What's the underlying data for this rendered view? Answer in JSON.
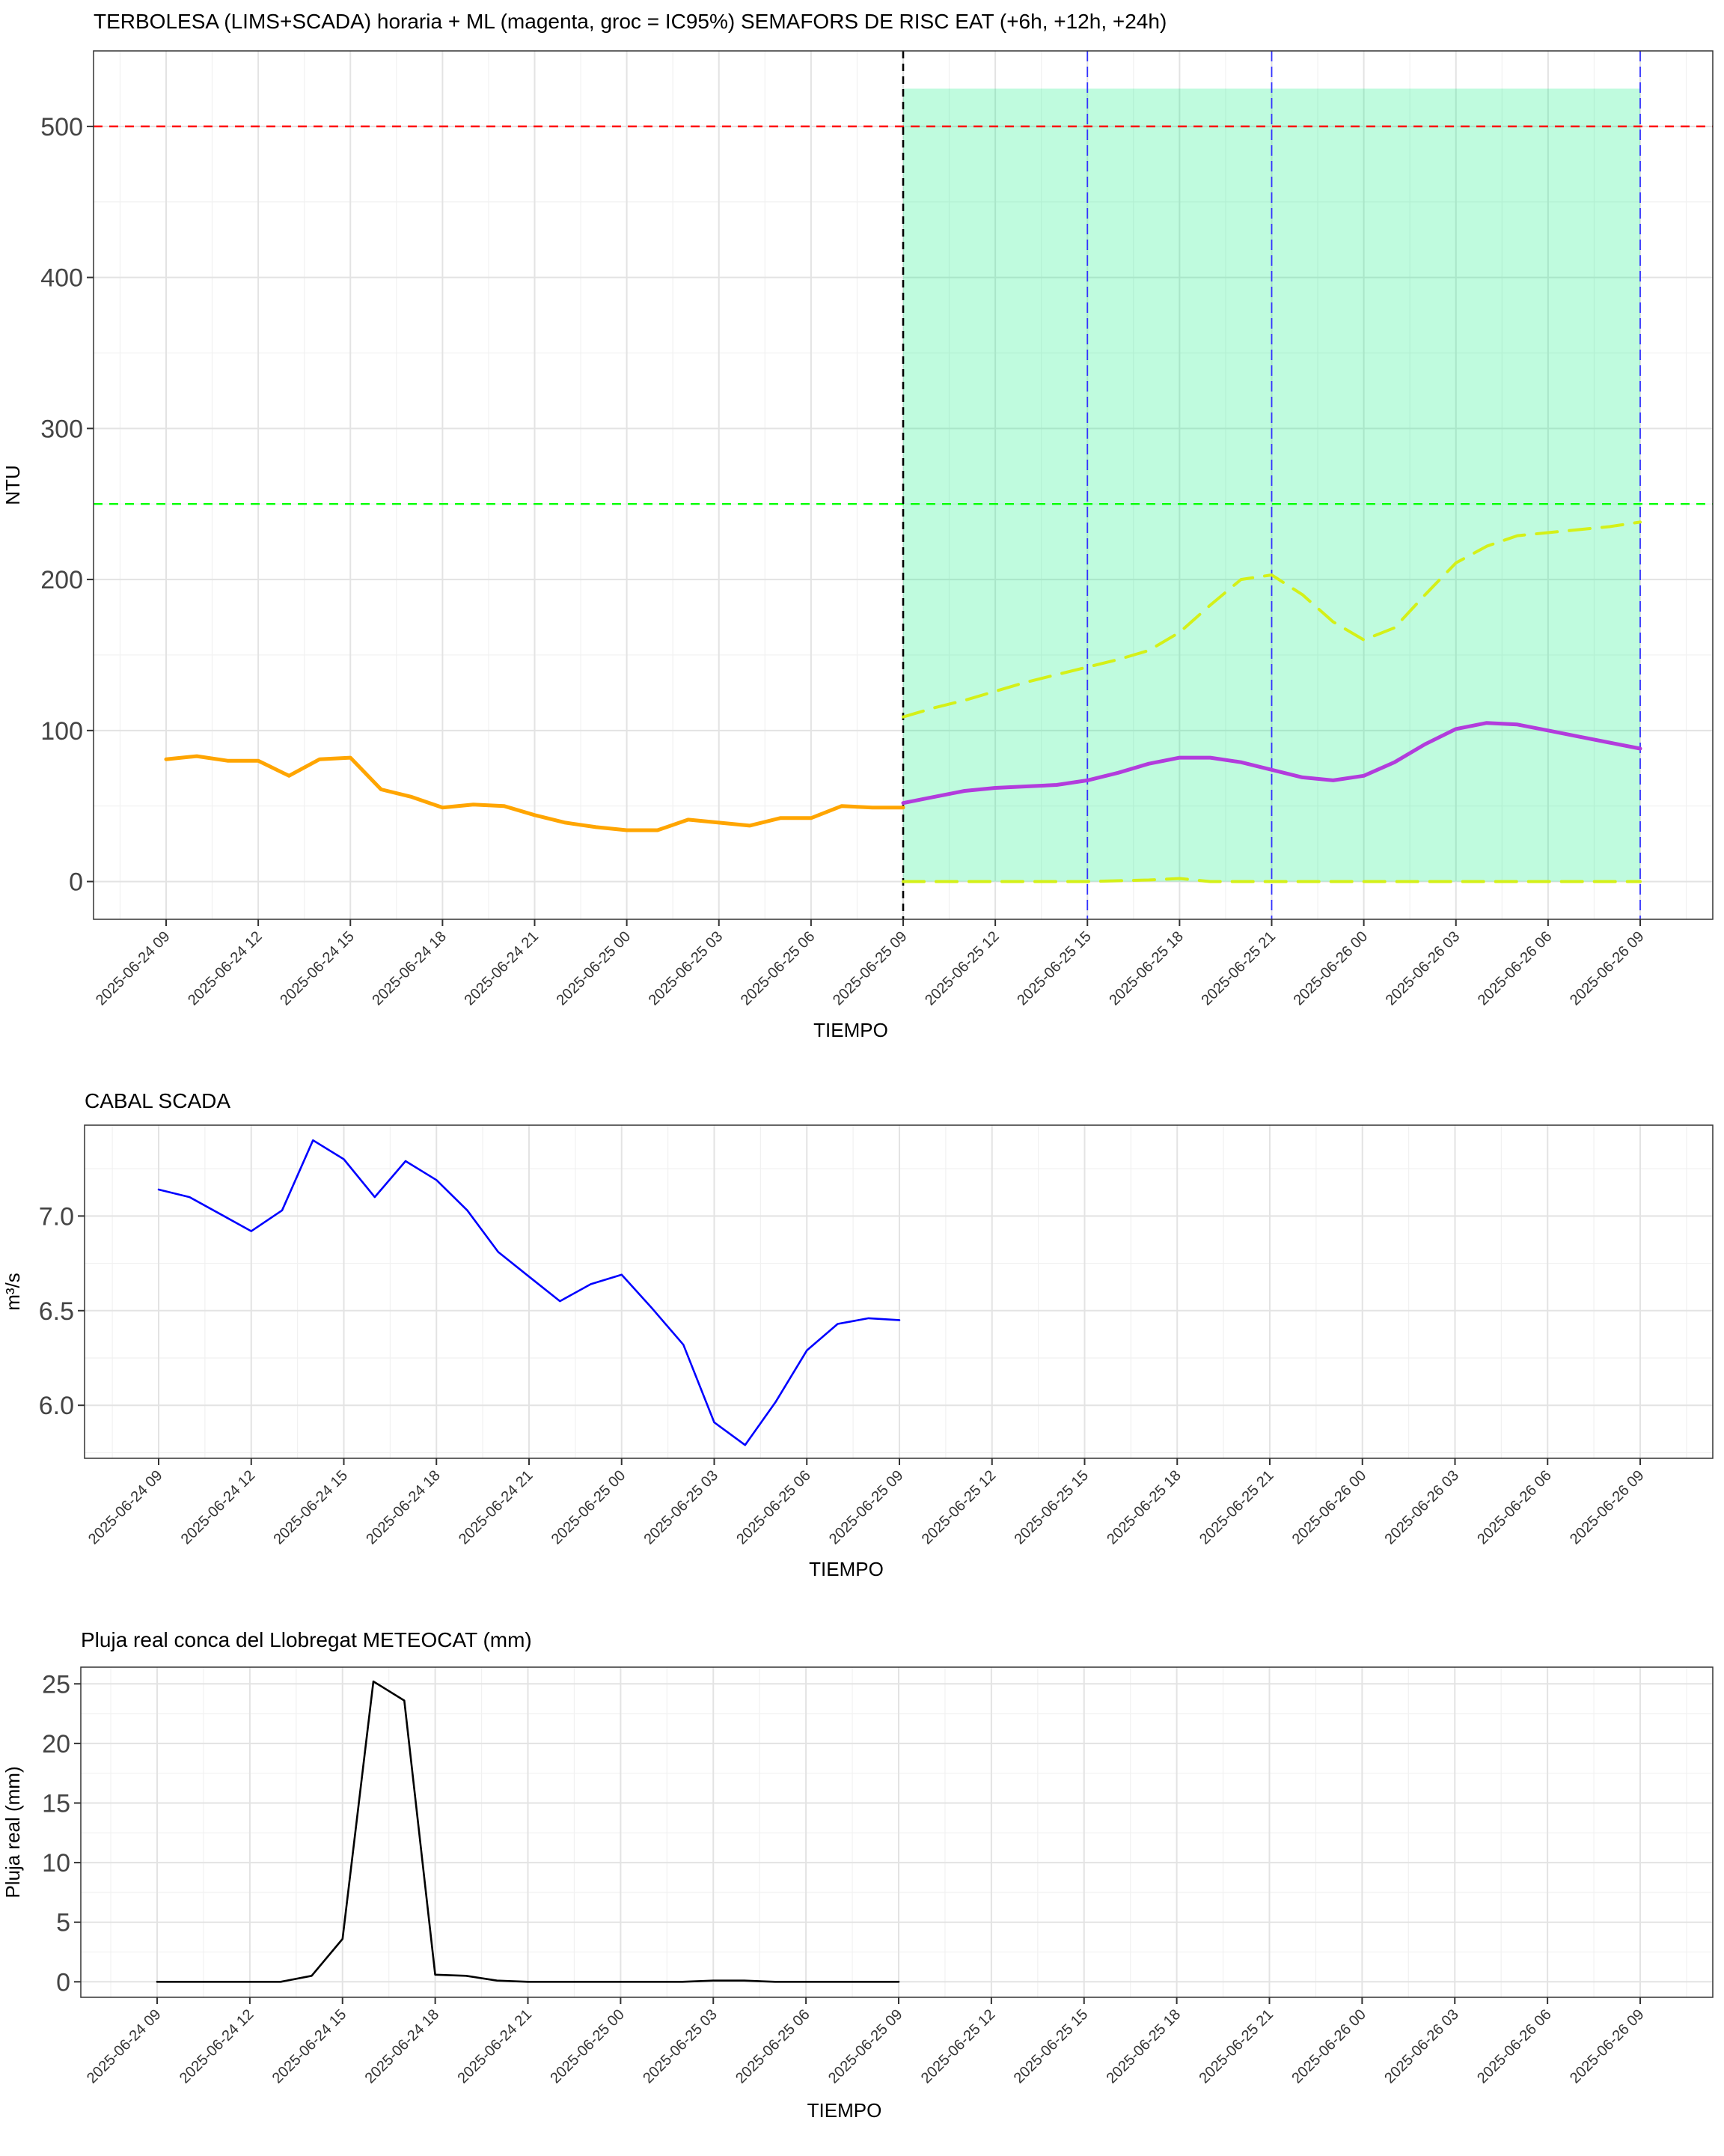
{
  "x_tick_labels": [
    "2025-06-24 09",
    "2025-06-24 12",
    "2025-06-24 15",
    "2025-06-24 18",
    "2025-06-24 21",
    "2025-06-25 00",
    "2025-06-25 03",
    "2025-06-25 06",
    "2025-06-25 09",
    "2025-06-25 12",
    "2025-06-25 15",
    "2025-06-25 18",
    "2025-06-25 21",
    "2025-06-26 00",
    "2025-06-26 03",
    "2025-06-26 06",
    "2025-06-26 09"
  ],
  "chart_data": [
    {
      "type": "line",
      "title": "TERBOLESA (LIMS+SCADA) horaria + ML (magenta, groc = IC95%) SEMAFORS DE RISC EAT (+6h, +12h, +24h)",
      "xlabel": "TIEMPO",
      "ylabel": "NTU",
      "x_unit": "hour",
      "x_range": [
        "2025-06-24 06:30",
        "2025-06-26 11:30"
      ],
      "ylim": [
        -25,
        550
      ],
      "yticks": [
        0,
        100,
        200,
        300,
        400,
        500
      ],
      "grid": true,
      "series": [
        {
          "key": "observed",
          "color": "#FFA500",
          "x": [
            "2025-06-24 09:00",
            "2025-06-24 10:00",
            "2025-06-24 11:00",
            "2025-06-24 12:00",
            "2025-06-24 13:00",
            "2025-06-24 14:00",
            "2025-06-24 15:00",
            "2025-06-24 16:00",
            "2025-06-24 17:00",
            "2025-06-24 18:00",
            "2025-06-24 19:00",
            "2025-06-24 20:00",
            "2025-06-24 21:00",
            "2025-06-24 22:00",
            "2025-06-24 23:00",
            "2025-06-25 00:00",
            "2025-06-25 01:00",
            "2025-06-25 02:00",
            "2025-06-25 03:00",
            "2025-06-25 04:00",
            "2025-06-25 05:00",
            "2025-06-25 06:00",
            "2025-06-25 07:00",
            "2025-06-25 08:00",
            "2025-06-25 09:00"
          ],
          "values": [
            81,
            83,
            80,
            80,
            70,
            81,
            82,
            61,
            56,
            49,
            51,
            50,
            44,
            39,
            36,
            34,
            34,
            41,
            39,
            37,
            42,
            42,
            50,
            49,
            49
          ]
        },
        {
          "key": "ml_prediction",
          "color": "#B23CDC",
          "x": [
            "2025-06-25 09:00",
            "2025-06-25 10:00",
            "2025-06-25 11:00",
            "2025-06-25 12:00",
            "2025-06-25 13:00",
            "2025-06-25 14:00",
            "2025-06-25 15:00",
            "2025-06-25 16:00",
            "2025-06-25 17:00",
            "2025-06-25 18:00",
            "2025-06-25 19:00",
            "2025-06-25 20:00",
            "2025-06-25 21:00",
            "2025-06-25 22:00",
            "2025-06-25 23:00",
            "2025-06-26 00:00",
            "2025-06-26 01:00",
            "2025-06-26 02:00",
            "2025-06-26 03:00",
            "2025-06-26 04:00",
            "2025-06-26 05:00",
            "2025-06-26 06:00",
            "2025-06-26 07:00",
            "2025-06-26 08:00",
            "2025-06-26 09:00"
          ],
          "values": [
            52,
            56,
            60,
            62,
            63,
            64,
            67,
            72,
            78,
            82,
            82,
            79,
            74,
            69,
            67,
            70,
            79,
            91,
            101,
            105,
            104,
            100,
            96,
            92,
            88
          ]
        },
        {
          "key": "ci95_upper",
          "color": "#D4F018",
          "dashed": true,
          "x": [
            "2025-06-25 09:00",
            "2025-06-25 10:00",
            "2025-06-25 11:00",
            "2025-06-25 12:00",
            "2025-06-25 13:00",
            "2025-06-25 14:00",
            "2025-06-25 15:00",
            "2025-06-25 16:00",
            "2025-06-25 17:00",
            "2025-06-25 18:00",
            "2025-06-25 19:00",
            "2025-06-25 20:00",
            "2025-06-25 21:00",
            "2025-06-25 22:00",
            "2025-06-25 23:00",
            "2025-06-26 00:00",
            "2025-06-26 01:00",
            "2025-06-26 02:00",
            "2025-06-26 03:00",
            "2025-06-26 04:00",
            "2025-06-26 05:00",
            "2025-06-26 06:00",
            "2025-06-26 07:00",
            "2025-06-26 08:00",
            "2025-06-26 09:00"
          ],
          "values": [
            109,
            115,
            120,
            126,
            132,
            137,
            142,
            147,
            153,
            165,
            183,
            200,
            203,
            190,
            172,
            160,
            168,
            190,
            211,
            222,
            229,
            231,
            233,
            235,
            238
          ]
        },
        {
          "key": "ci95_lower",
          "color": "#D4F018",
          "dashed": true,
          "x": [
            "2025-06-25 09:00",
            "2025-06-25 12:00",
            "2025-06-25 15:00",
            "2025-06-25 17:00",
            "2025-06-25 18:00",
            "2025-06-25 19:00",
            "2025-06-25 21:00",
            "2025-06-26 00:00",
            "2025-06-26 03:00",
            "2025-06-26 06:00",
            "2025-06-26 09:00"
          ],
          "values": [
            0,
            0,
            0,
            1,
            2,
            0,
            0,
            0,
            0,
            0,
            0
          ]
        }
      ],
      "forecast_band": {
        "x_start": "2025-06-25 09:00",
        "x_end": "2025-06-26 09:00",
        "y_top": 525,
        "color": "#00F07A",
        "opacity": 0.25
      },
      "threshold_lines": [
        {
          "y": 500,
          "color": "#FF0000"
        },
        {
          "y": 250,
          "color": "#00FF00"
        }
      ],
      "vertical_lines": [
        {
          "x": "2025-06-25 09:00",
          "color": "#000000"
        },
        {
          "x": "2025-06-25 15:00",
          "color": "#3333FF"
        },
        {
          "x": "2025-06-25 21:00",
          "color": "#3333FF"
        },
        {
          "x": "2025-06-26 09:00",
          "color": "#3333FF"
        }
      ]
    },
    {
      "type": "line",
      "title": "CABAL SCADA",
      "xlabel": "TIEMPO",
      "ylabel": "m³/s",
      "ylim": [
        5.72,
        7.48
      ],
      "yticks": [
        "6.0",
        "6.5",
        "7.0"
      ],
      "grid": true,
      "series": [
        {
          "key": "flow",
          "color": "#0000FF",
          "x": [
            "2025-06-24 09:00",
            "2025-06-24 10:00",
            "2025-06-24 11:00",
            "2025-06-24 12:00",
            "2025-06-24 13:00",
            "2025-06-24 14:00",
            "2025-06-24 15:00",
            "2025-06-24 16:00",
            "2025-06-24 17:00",
            "2025-06-24 18:00",
            "2025-06-24 19:00",
            "2025-06-24 20:00",
            "2025-06-24 21:00",
            "2025-06-24 22:00",
            "2025-06-24 23:00",
            "2025-06-25 00:00",
            "2025-06-25 01:00",
            "2025-06-25 02:00",
            "2025-06-25 03:00",
            "2025-06-25 04:00",
            "2025-06-25 05:00",
            "2025-06-25 06:00",
            "2025-06-25 07:00",
            "2025-06-25 08:00",
            "2025-06-25 09:00"
          ],
          "values": [
            7.14,
            7.1,
            7.01,
            6.92,
            7.03,
            7.4,
            7.3,
            7.1,
            7.29,
            7.19,
            7.03,
            6.81,
            6.68,
            6.55,
            6.64,
            6.69,
            6.51,
            6.32,
            5.91,
            5.79,
            6.02,
            6.29,
            6.43,
            6.46,
            6.45
          ]
        }
      ]
    },
    {
      "type": "line",
      "title": "Pluja real conca del Llobregat METEOCAT (mm)",
      "xlabel": "TIEMPO",
      "ylabel": "Pluja real (mm)",
      "ylim": [
        -1.3,
        26.4
      ],
      "yticks": [
        0,
        5,
        10,
        15,
        20,
        25
      ],
      "grid": true,
      "series": [
        {
          "key": "rain",
          "color": "#000000",
          "x": [
            "2025-06-24 09:00",
            "2025-06-24 10:00",
            "2025-06-24 11:00",
            "2025-06-24 12:00",
            "2025-06-24 13:00",
            "2025-06-24 14:00",
            "2025-06-24 15:00",
            "2025-06-24 16:00",
            "2025-06-24 17:00",
            "2025-06-24 18:00",
            "2025-06-24 19:00",
            "2025-06-24 20:00",
            "2025-06-24 21:00",
            "2025-06-24 22:00",
            "2025-06-24 23:00",
            "2025-06-25 00:00",
            "2025-06-25 01:00",
            "2025-06-25 02:00",
            "2025-06-25 03:00",
            "2025-06-25 04:00",
            "2025-06-25 05:00",
            "2025-06-25 06:00",
            "2025-06-25 07:00",
            "2025-06-25 08:00",
            "2025-06-25 09:00"
          ],
          "values": [
            0,
            0,
            0,
            0,
            0,
            0.5,
            3.6,
            25.2,
            23.6,
            0.6,
            0.5,
            0.1,
            0,
            0,
            0,
            0,
            0,
            0,
            0.1,
            0.1,
            0,
            0,
            0,
            0,
            0
          ]
        }
      ]
    }
  ]
}
